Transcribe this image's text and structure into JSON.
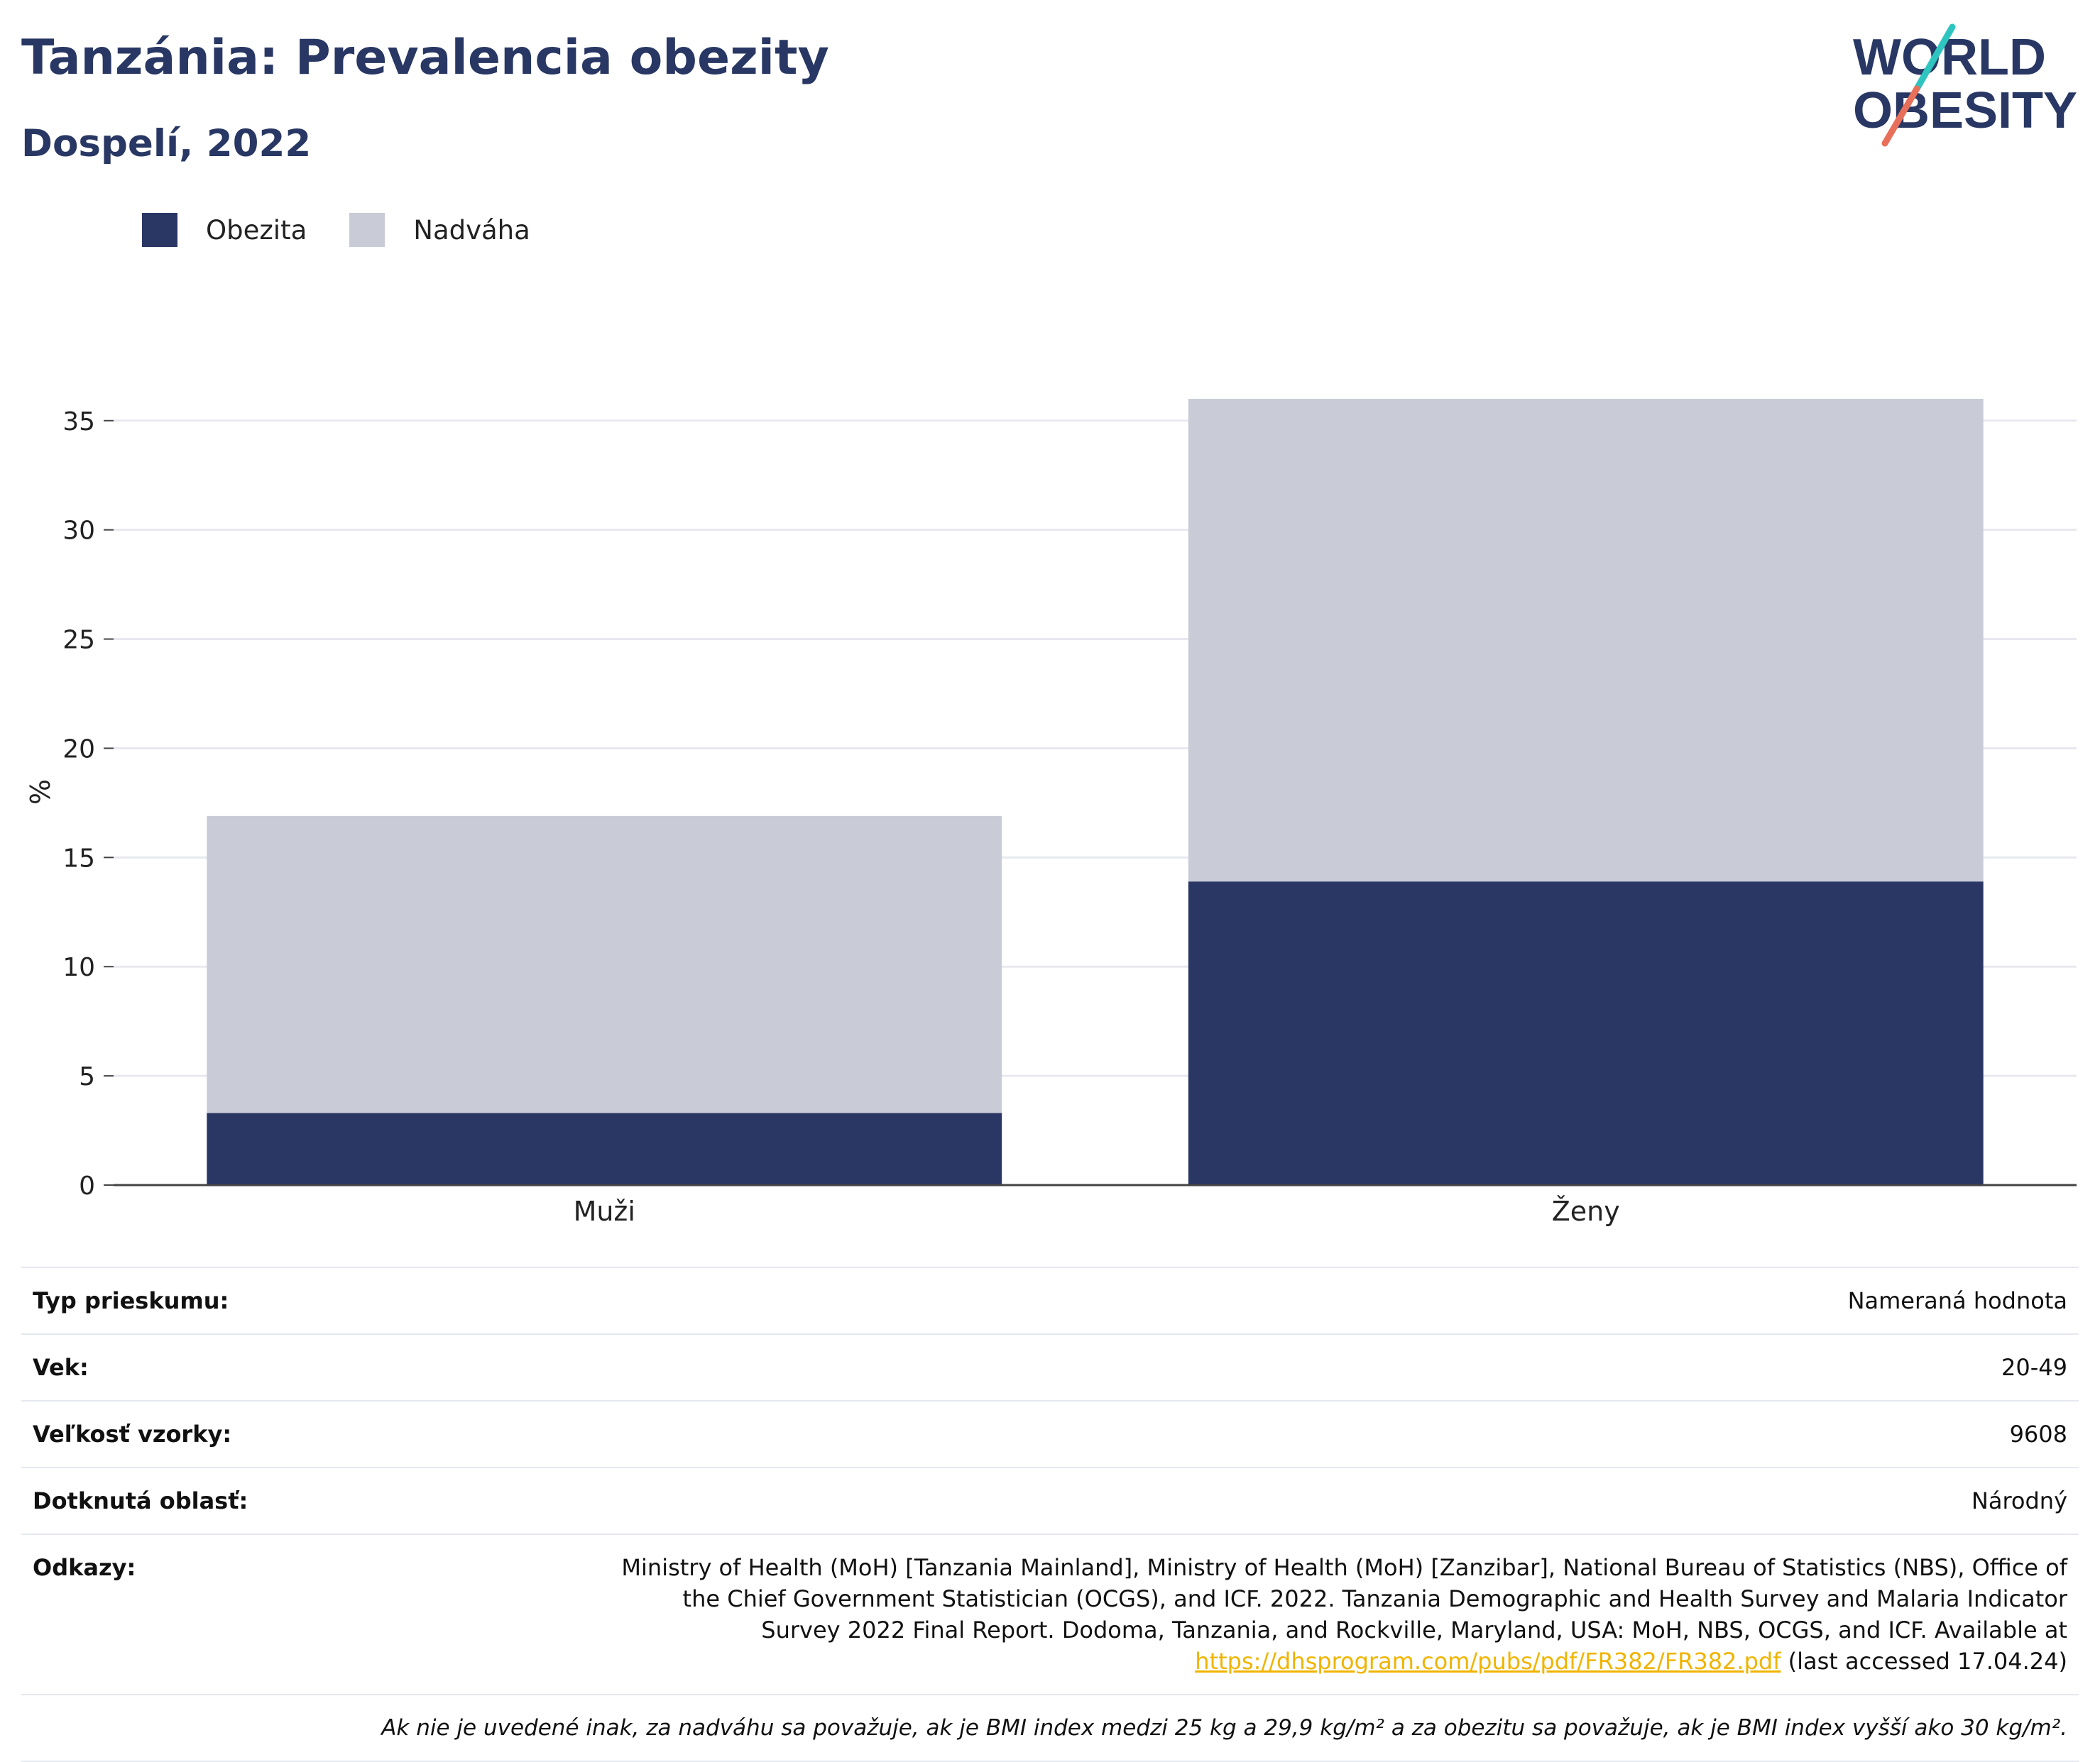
{
  "header": {
    "title": "Tanzánia: Prevalencia obezity",
    "subtitle": "Dospelí, 2022"
  },
  "logo": {
    "line1": "WORLD",
    "line2": "OBESITY",
    "colors": {
      "text": "#283763",
      "slash_teal": "#2ec4c0",
      "slash_coral": "#e8705a"
    }
  },
  "legend": {
    "items": [
      {
        "label": "Obezita",
        "color": "#2a3664"
      },
      {
        "label": "Nadváha",
        "color": "#c9ccd7"
      }
    ]
  },
  "chart_data": {
    "type": "bar",
    "stacked": true,
    "categories": [
      "Muži",
      "Ženy"
    ],
    "series": [
      {
        "name": "Obezita",
        "values": [
          3.3,
          13.9
        ],
        "color": "#2a3664"
      },
      {
        "name": "Nadváha",
        "values": [
          13.6,
          22.1
        ],
        "color": "#c9ccd7"
      }
    ],
    "ylabel": "%",
    "ylim": [
      0,
      36
    ],
    "yticks": [
      0,
      5,
      10,
      15,
      20,
      25,
      30,
      35
    ],
    "grid": true,
    "legend_position": "top-left"
  },
  "info": {
    "rows": [
      {
        "label": "Typ prieskumu:",
        "value": "Nameraná hodnota"
      },
      {
        "label": "Vek:",
        "value": "20-49"
      },
      {
        "label": "Veľkosť vzorky:",
        "value": "9608"
      },
      {
        "label": "Dotknutá oblasť:",
        "value": "Národný"
      }
    ],
    "references": {
      "label": "Odkazy:",
      "text": "Ministry of Health (MoH) [Tanzania Mainland], Ministry of Health (MoH) [Zanzibar], National Bureau of Statistics (NBS), Office of the Chief Government Statistician (OCGS), and ICF. 2022. Tanzania Demographic and Health Survey and Malaria Indicator Survey 2022 Final Report. Dodoma, Tanzania, and Rockville, Maryland, USA: MoH, NBS, OCGS, and ICF. Available at",
      "link": "https://dhsprogram.com/pubs/pdf/FR382/FR382.pdf",
      "accessed": "(last accessed 17.04.24)"
    },
    "note": "Ak nie je uvedené inak, za nadváhu sa považuje, ak je BMI index medzi 25 kg a 29,9 kg/m² a za obezitu sa považuje, ak je BMI index vyšší ako 30 kg/m²."
  }
}
